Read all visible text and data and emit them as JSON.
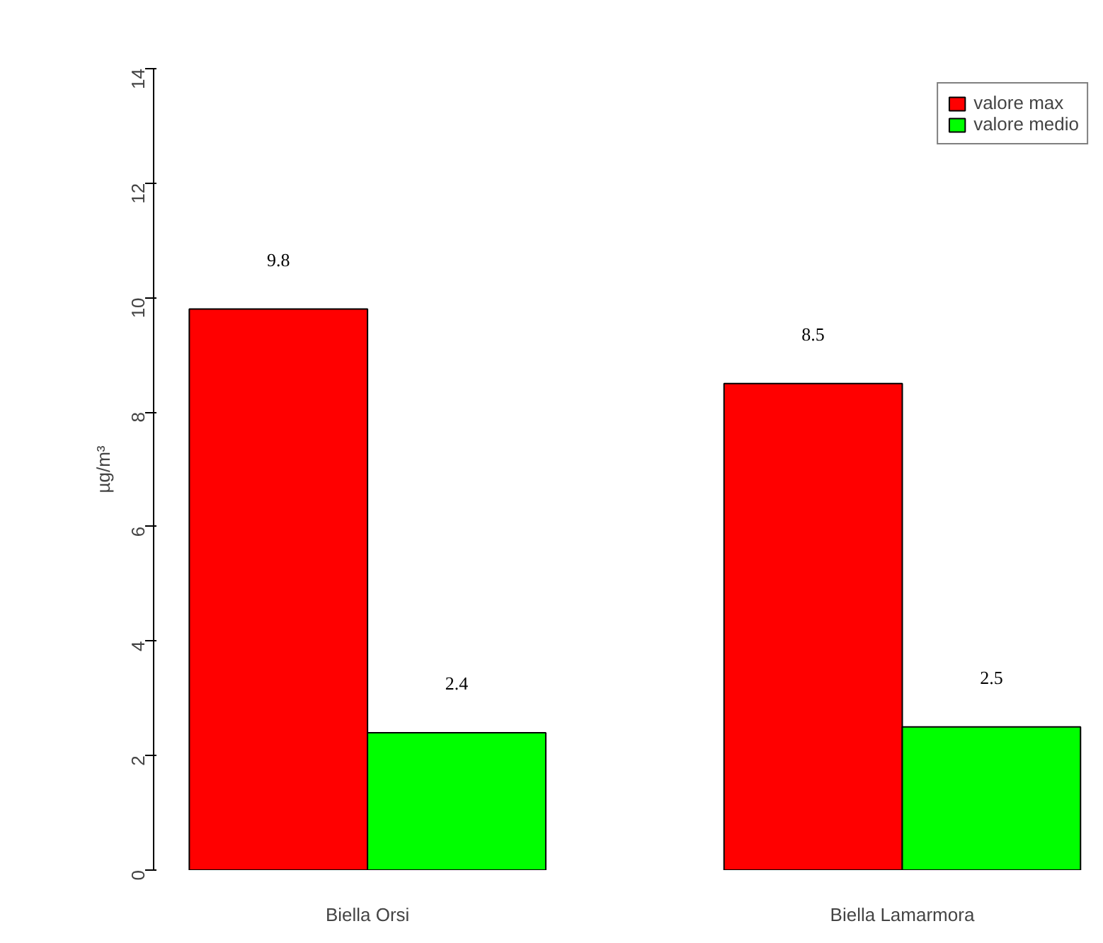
{
  "chart_data": {
    "type": "bar",
    "ylabel": "µg/m³",
    "categories": [
      "Biella Orsi",
      "Biella Lamarmora"
    ],
    "series": [
      {
        "name": "valore max",
        "color": "#ff0000",
        "values": [
          9.8,
          8.5
        ]
      },
      {
        "name": "valore medio",
        "color": "#00ff00",
        "values": [
          2.4,
          2.5
        ]
      }
    ],
    "ylim": [
      0,
      14
    ],
    "yticks": [
      0,
      2,
      4,
      6,
      8,
      10,
      12,
      14
    ],
    "grid": false,
    "legend": "top right",
    "data_labels": true
  }
}
